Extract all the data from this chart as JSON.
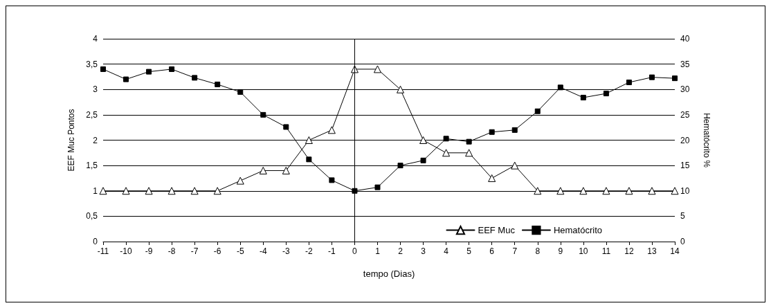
{
  "chart_data": {
    "type": "line",
    "xlabel": "tempo (Dias)",
    "ylabel": "EEF Muc Pontos",
    "y2label": "Hematócrito %",
    "x": [
      -11,
      -10,
      -9,
      -8,
      -7,
      -6,
      -5,
      -4,
      -3,
      -2,
      -1,
      0,
      1,
      2,
      3,
      4,
      5,
      6,
      7,
      8,
      9,
      10,
      11,
      12,
      13,
      14
    ],
    "series": [
      {
        "name": "EEF Muc",
        "color": "#000000",
        "marker": "triangle",
        "values": [
          1,
          1,
          1,
          1,
          1,
          1,
          1.2,
          1.4,
          1.4,
          2,
          2.2,
          3.4,
          3.4,
          3,
          2,
          1.75,
          1.75,
          1.25,
          1.5,
          1,
          1,
          1,
          1,
          1,
          1,
          1
        ]
      },
      {
        "name": "Hematócrito",
        "color": "#000000",
        "marker": "square",
        "axis": "y2",
        "values": [
          34,
          32,
          33.5,
          34,
          32.3,
          31,
          29.5,
          25,
          22.6,
          16.2,
          12.1,
          10,
          10.7,
          15,
          16,
          20.3,
          19.7,
          21.6,
          22,
          25.7,
          30.4,
          28.4,
          29.2,
          31.4,
          32.4,
          32.2
        ]
      }
    ],
    "xlim": [
      -11,
      14
    ],
    "xticks": [
      -11,
      -10,
      -9,
      -8,
      -7,
      -6,
      -5,
      -4,
      -3,
      -2,
      -1,
      0,
      1,
      2,
      3,
      4,
      5,
      6,
      7,
      8,
      9,
      10,
      11,
      12,
      13,
      14
    ],
    "ylim": [
      0,
      4
    ],
    "yticks": [
      0,
      {
        "value": 0.5,
        "label": "0,5"
      },
      1,
      {
        "value": 1.5,
        "label": "1,5"
      },
      2,
      {
        "value": 2.5,
        "label": "2,5"
      },
      3,
      {
        "value": 3.5,
        "label": "3,5"
      },
      4
    ],
    "y2lim": [
      0,
      40
    ],
    "y2ticks": [
      0,
      5,
      10,
      15,
      20,
      25,
      30,
      35,
      40
    ],
    "ref_lines": [
      {
        "axis": "x",
        "value": 0,
        "color": "#000000"
      }
    ],
    "grid": "y",
    "legend": "bottom right",
    "line_style": "solid"
  }
}
